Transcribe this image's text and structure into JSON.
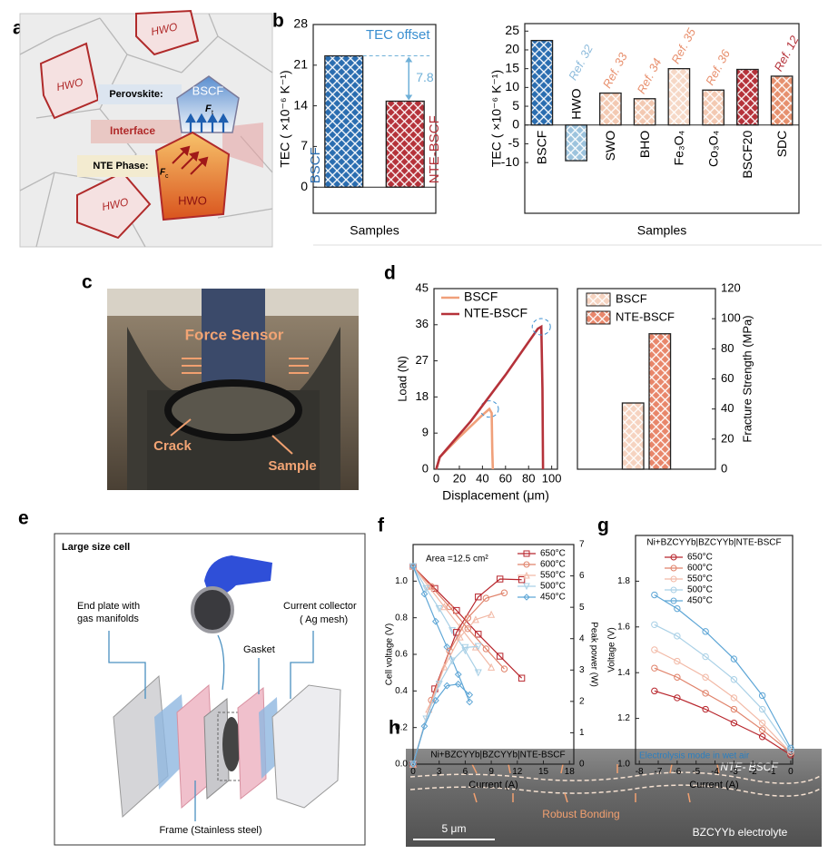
{
  "panel_labels": {
    "a": "a",
    "b": "b",
    "c": "c",
    "d": "d",
    "e": "e",
    "f": "f",
    "g": "g",
    "h": "h"
  },
  "panel_a": {
    "hwo": [
      "HWO",
      "HWO",
      "HWO",
      "HWO"
    ],
    "bscf": "BSCF",
    "perovskite": "Perovskite:",
    "interface": "Interface",
    "nte_phase": "NTE Phase:",
    "force_t": "F",
    "force_t_sub": "t",
    "force_c": "F",
    "force_c_sub": "c"
  },
  "panel_c": {
    "force_sensor": "Force Sensor",
    "crack": "Crack",
    "sample": "Sample"
  },
  "panel_e": {
    "title": "Large size cell",
    "end_plate": [
      "End plate with",
      "gas manifolds"
    ],
    "gasket": "Gasket",
    "collector": [
      "Current collector",
      "( Ag mesh)"
    ],
    "frame": "Frame (Stainless steel)"
  },
  "panel_h": {
    "top": "NTE- BSCF",
    "bonding": "Robust Bonding",
    "bottom": "BZCYYb electrolyte",
    "scale": "5 μm"
  },
  "chart_data": [
    {
      "type": "bar",
      "ylabel": "TEC ( ×10⁻⁶ K⁻¹)",
      "xlabel": "Samples",
      "categories": [
        "BSCF",
        "NTE-BSCF"
      ],
      "values": [
        22.6,
        14.8
      ],
      "colors": [
        "#2a6db0",
        "#b5323a"
      ],
      "ylim": [
        -4.5,
        28
      ],
      "yticks": [
        0,
        7,
        14,
        21,
        28
      ],
      "annotation": "TEC offset",
      "offset": 7.8
    },
    {
      "type": "bar",
      "ylabel": "TEC ( ×10⁻⁶ K⁻¹)",
      "xlabel": "Samples",
      "categories": [
        "BSCF",
        "HWO",
        "SWO",
        "BHO",
        "Fe₃O₄",
        "Co₃O₄",
        "BSCF20",
        "SDC"
      ],
      "values": [
        22.5,
        -9.5,
        8.5,
        7,
        15,
        9.3,
        14.8,
        13
      ],
      "colors": [
        "#2a6db0",
        "#9cc3dd",
        "#f3c9b2",
        "#f3c9b2",
        "#f6d8c6",
        "#f3c9b2",
        "#b5323a",
        "#e6906e"
      ],
      "ref_labels": [
        null,
        "Ref. 32",
        "Ref. 33",
        "Ref. 34",
        "Ref. 35",
        "Ref. 36",
        null,
        "Ref. 12"
      ],
      "ref_colors": [
        null,
        "#8fbcdc",
        "#e8906e",
        "#e8906e",
        "#e8906e",
        "#e8906e",
        null,
        "#b5323a"
      ],
      "ylim": [
        -23.5,
        27
      ],
      "yticks": [
        -10,
        -5,
        0,
        5,
        10,
        15,
        20,
        25
      ]
    },
    {
      "type": "line",
      "xlabel": "Displacement (μm)",
      "ylabel": "Load (N)",
      "series": [
        {
          "name": "BSCF",
          "color": "#f0a07a",
          "x": [
            0,
            3,
            20,
            40,
            46,
            48,
            48.5,
            49
          ],
          "values": [
            0,
            3,
            8,
            13.5,
            15,
            14,
            5,
            0
          ]
        },
        {
          "name": "NTE-BSCF",
          "color": "#b5323a",
          "x": [
            0,
            3,
            30,
            60,
            88,
            91,
            92,
            92.5
          ],
          "values": [
            0,
            3,
            12,
            23.5,
            35,
            35.5,
            20,
            0
          ]
        }
      ],
      "xlim": [
        -2,
        105
      ],
      "xticks": [
        0,
        20,
        40,
        60,
        80,
        100
      ],
      "ylim": [
        0,
        45
      ],
      "yticks": [
        0,
        9,
        18,
        27,
        36,
        45
      ],
      "legend": "upper-left"
    },
    {
      "type": "bar",
      "ylabel": "Fracture Strength (MPa)",
      "categories": [
        "BSCF",
        "NTE-BSCF"
      ],
      "values": [
        44,
        90
      ],
      "colors": [
        "#f6d3c0",
        "#e8866a"
      ],
      "ylim": [
        0,
        120
      ],
      "yticks": [
        0,
        20,
        40,
        60,
        80,
        100,
        120
      ],
      "axis_side": "right",
      "legend": "upper-left"
    },
    {
      "type": "line",
      "xlabel": "Current (A)",
      "ylabel": "Cell voltage (V)",
      "y2label": "Peak power (W)",
      "annotation": "Area =12.5 cm²",
      "subtitle": "Ni+BZCYYb|BZCYYb|NTE-BSCF",
      "legend": "upper-right",
      "series": [
        {
          "name": "650°C",
          "color": "#b8262d",
          "marker": "square",
          "x": [
            0,
            2.5,
            5,
            7.5,
            10,
            12.5
          ],
          "values": [
            1.08,
            0.96,
            0.84,
            0.71,
            0.59,
            0.47
          ]
        },
        {
          "name": "600°C",
          "color": "#e0826a",
          "marker": "circle",
          "x": [
            0,
            2.1,
            4.2,
            6.3,
            8.4,
            10.5
          ],
          "values": [
            1.08,
            0.97,
            0.86,
            0.74,
            0.63,
            0.52
          ]
        },
        {
          "name": "550°C",
          "color": "#f2b9a6",
          "marker": "triangle-up",
          "x": [
            0,
            1.8,
            3.6,
            5.4,
            7.2,
            9
          ],
          "values": [
            1.08,
            0.97,
            0.86,
            0.75,
            0.64,
            0.53
          ]
        },
        {
          "name": "500°C",
          "color": "#a9d0e6",
          "marker": "triangle-down",
          "x": [
            0,
            1.5,
            3,
            4.5,
            6,
            7.5
          ],
          "values": [
            1.08,
            0.96,
            0.85,
            0.73,
            0.62,
            0.5
          ]
        },
        {
          "name": "450°C",
          "color": "#5ea6d6",
          "marker": "diamond",
          "x": [
            0,
            1.3,
            2.6,
            3.9,
            5.2,
            6.5
          ],
          "values": [
            1.08,
            0.93,
            0.78,
            0.64,
            0.49,
            0.34
          ]
        },
        {
          "color": "#b8262d",
          "marker": "square",
          "axis": "y2",
          "x": [
            0,
            2.5,
            5,
            7.5,
            10,
            12.5
          ],
          "values": [
            0,
            2.4,
            4.2,
            5.33,
            5.9,
            5.88
          ]
        },
        {
          "color": "#e0826a",
          "marker": "circle",
          "axis": "y2",
          "x": [
            0,
            2.1,
            4.2,
            6.3,
            8.4,
            10.5
          ],
          "values": [
            0,
            2.04,
            3.61,
            4.66,
            5.29,
            5.46
          ]
        },
        {
          "color": "#f2b9a6",
          "marker": "triangle-up",
          "axis": "y2",
          "x": [
            0,
            1.8,
            3.6,
            5.4,
            7.2,
            9
          ],
          "values": [
            0,
            1.75,
            3.1,
            4.05,
            4.61,
            4.77
          ]
        },
        {
          "color": "#a9d0e6",
          "marker": "triangle-down",
          "axis": "y2",
          "x": [
            0,
            1.5,
            3,
            4.5,
            6,
            7.5
          ],
          "values": [
            0,
            1.44,
            2.55,
            3.29,
            3.72,
            3.75
          ]
        },
        {
          "color": "#5ea6d6",
          "marker": "diamond",
          "axis": "y2",
          "x": [
            0,
            1.3,
            2.6,
            3.9,
            5.2,
            6.5
          ],
          "values": [
            0,
            1.21,
            2.03,
            2.5,
            2.55,
            2.21
          ]
        }
      ],
      "xlim": [
        0,
        18.5
      ],
      "xticks": [
        0,
        3,
        6,
        9,
        12,
        15,
        18
      ],
      "ylim": [
        0,
        1.2
      ],
      "yticks": [
        {
          "value": 0,
          "label": "0.0"
        },
        0.2,
        0.4,
        0.6,
        0.8,
        {
          "value": 1,
          "label": "1.0"
        }
      ],
      "y2lim": [
        0,
        7
      ],
      "y2ticks": [
        0,
        1,
        2,
        3,
        4,
        5,
        6,
        7
      ]
    },
    {
      "type": "line",
      "xlabel": "Current (A)",
      "ylabel": "Voltage (V)",
      "subtitle": "Ni+BZCYYb|BZCYYb|NTE-BSCF",
      "annotation": "Electrolysis mode in wet air",
      "legend": "upper-left",
      "series": [
        {
          "name": "650°C",
          "color": "#b8262d",
          "marker": "circle",
          "x": [
            -7.2,
            -6,
            -4.5,
            -3,
            -1.5,
            0
          ],
          "values": [
            1.32,
            1.29,
            1.24,
            1.18,
            1.12,
            1.04
          ]
        },
        {
          "name": "600°C",
          "color": "#e0826a",
          "marker": "circle",
          "x": [
            -7.2,
            -6,
            -4.5,
            -3,
            -1.5,
            0
          ],
          "values": [
            1.42,
            1.38,
            1.31,
            1.24,
            1.15,
            1.05
          ]
        },
        {
          "name": "550°C",
          "color": "#f2b9a6",
          "marker": "circle",
          "x": [
            -7.2,
            -6,
            -4.5,
            -3,
            -1.5,
            0
          ],
          "values": [
            1.5,
            1.45,
            1.38,
            1.29,
            1.18,
            1.05
          ]
        },
        {
          "name": "500°C",
          "color": "#a9d0e6",
          "marker": "circle",
          "x": [
            -7.2,
            -6,
            -4.5,
            -3,
            -1.5,
            0
          ],
          "values": [
            1.61,
            1.56,
            1.47,
            1.37,
            1.24,
            1.06
          ]
        },
        {
          "name": "450°C",
          "color": "#5ea6d6",
          "marker": "circle",
          "x": [
            -7.2,
            -6,
            -4.5,
            -3,
            -1.5,
            0
          ],
          "values": [
            1.74,
            1.68,
            1.58,
            1.46,
            1.3,
            1.07
          ]
        }
      ],
      "xlim": [
        -8.2,
        0.1
      ],
      "xticks": [
        -8,
        -7,
        -6,
        -5,
        -4,
        -3,
        -2,
        -1,
        0
      ],
      "ylim": [
        1,
        2
      ],
      "yticks": [
        {
          "value": 1,
          "label": "1.0"
        },
        1.2,
        1.4,
        1.6,
        1.8
      ]
    }
  ]
}
